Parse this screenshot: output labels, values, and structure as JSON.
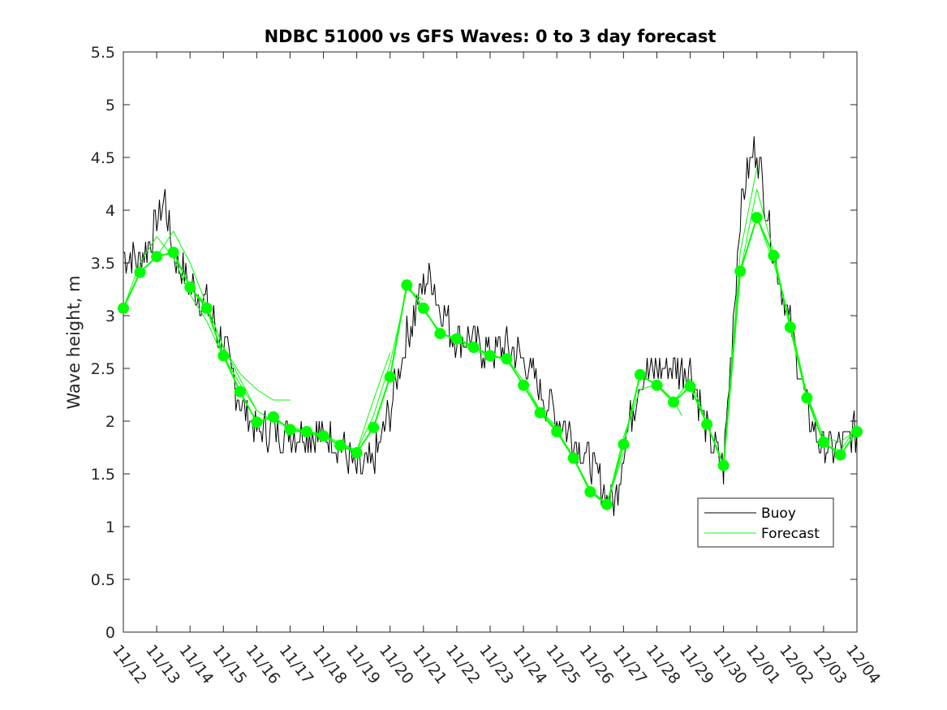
{
  "chart_data": {
    "type": "line",
    "title": "NDBC 51000 vs GFS Waves: 0 to 3 day forecast",
    "xlabel": "",
    "ylabel": "Wave height, m",
    "ylim": [
      0,
      5.5
    ],
    "xlim": [
      0,
      22
    ],
    "yticks": [
      "0",
      "0.5",
      "1",
      "1.5",
      "2",
      "2.5",
      "3",
      "3.5",
      "4",
      "4.5",
      "5",
      "5.5"
    ],
    "xtick_labels": [
      "11/12",
      "11/13",
      "11/14",
      "11/15",
      "11/16",
      "11/17",
      "11/18",
      "11/19",
      "11/20",
      "11/21",
      "11/22",
      "11/23",
      "11/24",
      "11/25",
      "11/26",
      "11/27",
      "11/28",
      "11/29",
      "11/30",
      "12/01",
      "12/02",
      "12/03",
      "12/04"
    ],
    "legend": {
      "position": "lower-right",
      "entries": [
        "Buoy",
        "Forecast"
      ]
    },
    "colors": {
      "buoy": "#000000",
      "forecast": "#00ff00",
      "axis": "#262626"
    },
    "buoy": {
      "x": [
        0,
        0.5,
        1,
        1.25,
        1.5,
        2,
        2.5,
        3,
        3.5,
        4,
        4.5,
        5,
        5.5,
        6,
        6.5,
        7,
        7.5,
        8,
        8.5,
        9,
        9.25,
        9.5,
        9.75,
        10,
        10.5,
        11,
        11.5,
        12,
        12.5,
        13,
        13.5,
        14,
        14.5,
        14.75,
        15,
        15.5,
        16,
        16.5,
        17,
        17.5,
        18,
        18.5,
        18.75,
        19,
        19.25,
        19.5,
        20,
        20.5,
        21,
        21.5,
        22
      ],
      "values": [
        3.6,
        3.5,
        3.9,
        4.1,
        3.6,
        3.3,
        3.1,
        2.7,
        2.2,
        1.9,
        1.9,
        1.9,
        1.9,
        1.85,
        1.8,
        1.5,
        1.6,
        2.1,
        2.8,
        3.3,
        3.35,
        3.1,
        2.9,
        2.8,
        2.75,
        2.65,
        2.7,
        2.6,
        2.3,
        2.05,
        1.85,
        1.6,
        1.3,
        1.2,
        1.75,
        2.4,
        2.5,
        2.5,
        2.5,
        1.9,
        1.55,
        4.0,
        4.4,
        4.6,
        4.1,
        3.6,
        2.9,
        2.1,
        1.75,
        1.75,
        1.9
      ]
    },
    "forecast": {
      "x": [
        0,
        0.5,
        1,
        1.5,
        2,
        2.5,
        3,
        3.5,
        4,
        4.5,
        5,
        5.5,
        6,
        6.5,
        7,
        7.5,
        8,
        8.5,
        9,
        9.5,
        10,
        10.5,
        11,
        11.5,
        12,
        12.5,
        13,
        13.5,
        14,
        14.5,
        15,
        15.5,
        16,
        16.5,
        17,
        17.5,
        18,
        18.5,
        19,
        19.5,
        20,
        20.5,
        21,
        21.5,
        22
      ],
      "values": [
        3.07,
        3.41,
        3.56,
        3.6,
        3.27,
        3.07,
        2.62,
        2.28,
        1.99,
        2.04,
        1.92,
        1.9,
        1.86,
        1.77,
        1.7,
        1.94,
        2.42,
        3.29,
        3.07,
        2.83,
        2.78,
        2.7,
        2.62,
        2.59,
        2.34,
        2.08,
        1.9,
        1.65,
        1.33,
        1.21,
        1.78,
        2.44,
        2.34,
        2.18,
        2.33,
        1.97,
        1.58,
        3.42,
        3.93,
        3.57,
        2.89,
        2.22,
        1.8,
        1.68,
        1.9
      ]
    },
    "forecast_runs": [
      {
        "x": [
          0,
          0.5,
          1,
          1.5,
          2,
          2.5,
          3
        ],
        "values": [
          3.07,
          3.5,
          3.75,
          3.55,
          3.2,
          2.95,
          2.6
        ]
      },
      {
        "x": [
          1,
          1.5,
          2,
          2.5,
          3,
          3.5,
          4
        ],
        "values": [
          3.56,
          3.8,
          3.5,
          3.1,
          2.7,
          2.4,
          2.1
        ]
      },
      {
        "x": [
          2,
          2.5,
          3,
          3.5,
          4,
          4.5,
          5
        ],
        "values": [
          3.27,
          3.1,
          2.7,
          2.45,
          2.3,
          2.2,
          2.2
        ]
      },
      {
        "x": [
          3,
          3.5,
          4,
          4.5,
          5,
          5.5,
          6
        ],
        "values": [
          2.62,
          2.35,
          2.1,
          2.0,
          1.95,
          1.9,
          1.88
        ]
      },
      {
        "x": [
          5,
          5.5,
          6,
          6.5,
          7,
          7.5,
          8
        ],
        "values": [
          1.92,
          1.88,
          1.85,
          1.78,
          1.72,
          2.2,
          2.65
        ]
      },
      {
        "x": [
          6,
          6.5,
          7,
          7.5,
          8,
          8.5,
          9
        ],
        "values": [
          1.86,
          1.8,
          1.72,
          2.05,
          2.55,
          3.25,
          3.15
        ]
      },
      {
        "x": [
          8,
          8.5,
          9,
          9.5,
          10,
          10.5,
          11
        ],
        "values": [
          2.42,
          3.3,
          3.05,
          2.85,
          2.75,
          2.68,
          2.6
        ]
      },
      {
        "x": [
          10,
          10.5,
          11,
          11.5,
          12,
          12.5,
          13
        ],
        "values": [
          2.78,
          2.72,
          2.62,
          2.6,
          2.38,
          2.1,
          1.95
        ]
      },
      {
        "x": [
          12,
          12.5,
          13,
          13.5,
          14,
          14.5,
          15
        ],
        "values": [
          2.34,
          2.1,
          1.92,
          1.66,
          1.35,
          1.22,
          1.7
        ]
      },
      {
        "x": [
          14,
          14.5,
          15,
          15.5,
          16,
          16.5,
          16.75
        ],
        "values": [
          1.33,
          1.21,
          1.85,
          2.3,
          2.35,
          2.2,
          2.05
        ]
      },
      {
        "x": [
          16,
          16.5,
          17,
          17.5,
          18,
          18.5,
          19
        ],
        "values": [
          2.34,
          2.18,
          2.4,
          1.98,
          1.6,
          3.6,
          4.4
        ]
      },
      {
        "x": [
          18,
          18.5,
          19,
          19.5,
          20,
          20.5,
          21
        ],
        "values": [
          1.58,
          3.42,
          4.2,
          3.6,
          2.9,
          2.25,
          1.8
        ]
      },
      {
        "x": [
          19,
          19.5,
          20,
          20.5,
          21,
          21.5,
          22
        ],
        "values": [
          3.93,
          3.5,
          2.95,
          2.25,
          1.78,
          1.72,
          1.95
        ]
      },
      {
        "x": [
          20,
          20.5,
          21,
          21.5,
          22
        ],
        "values": [
          2.89,
          2.25,
          1.85,
          1.8,
          1.92
        ]
      }
    ]
  }
}
